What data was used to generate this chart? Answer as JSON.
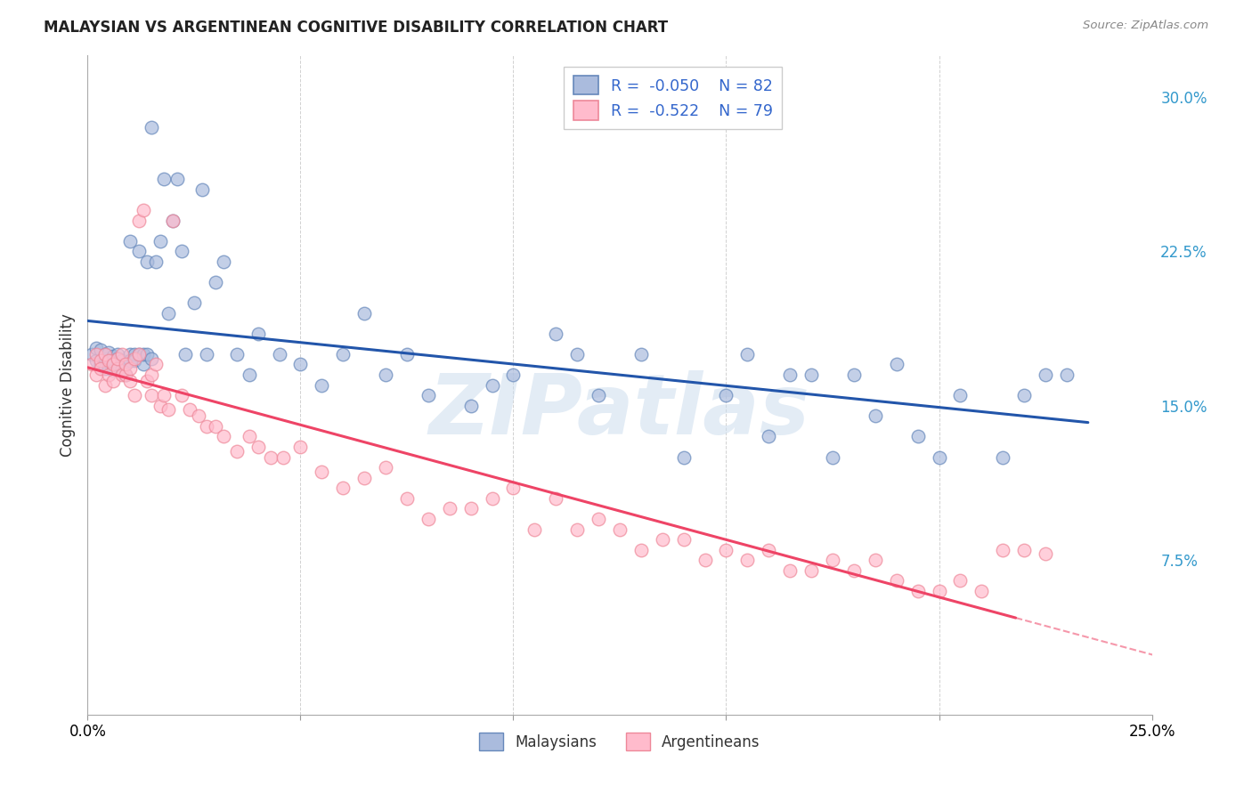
{
  "title": "MALAYSIAN VS ARGENTINEAN COGNITIVE DISABILITY CORRELATION CHART",
  "source": "Source: ZipAtlas.com",
  "ylabel": "Cognitive Disability",
  "x_min": 0.0,
  "x_max": 0.25,
  "y_min": 0.0,
  "y_max": 0.32,
  "x_ticks": [
    0.0,
    0.05,
    0.1,
    0.15,
    0.2,
    0.25
  ],
  "x_tick_labels": [
    "0.0%",
    "",
    "",
    "",
    "",
    "25.0%"
  ],
  "y_ticks_right": [
    0.075,
    0.15,
    0.225,
    0.3
  ],
  "y_tick_labels_right": [
    "7.5%",
    "15.0%",
    "22.5%",
    "30.0%"
  ],
  "color_blue_face": "#AABBDD",
  "color_pink_face": "#FFBBCC",
  "color_blue_edge": "#6688BB",
  "color_pink_edge": "#EE8899",
  "color_blue_line": "#2255AA",
  "color_pink_line": "#EE4466",
  "color_right_axis": "#3399CC",
  "legend_text_color": "#3366CC",
  "watermark": "ZIPatlas",
  "grid_color": "#CCCCCC",
  "malaysians_x": [
    0.001,
    0.002,
    0.002,
    0.003,
    0.003,
    0.004,
    0.004,
    0.004,
    0.005,
    0.005,
    0.005,
    0.006,
    0.006,
    0.006,
    0.007,
    0.007,
    0.007,
    0.008,
    0.008,
    0.009,
    0.009,
    0.01,
    0.01,
    0.01,
    0.011,
    0.011,
    0.012,
    0.012,
    0.013,
    0.013,
    0.014,
    0.014,
    0.015,
    0.015,
    0.016,
    0.017,
    0.018,
    0.019,
    0.02,
    0.021,
    0.022,
    0.023,
    0.025,
    0.027,
    0.028,
    0.03,
    0.032,
    0.035,
    0.038,
    0.04,
    0.045,
    0.05,
    0.055,
    0.06,
    0.065,
    0.07,
    0.075,
    0.08,
    0.09,
    0.095,
    0.1,
    0.11,
    0.115,
    0.12,
    0.13,
    0.14,
    0.15,
    0.155,
    0.16,
    0.165,
    0.17,
    0.175,
    0.18,
    0.185,
    0.19,
    0.195,
    0.2,
    0.205,
    0.215,
    0.22,
    0.225,
    0.23
  ],
  "malaysians_y": [
    0.175,
    0.172,
    0.178,
    0.17,
    0.177,
    0.173,
    0.168,
    0.175,
    0.171,
    0.176,
    0.169,
    0.174,
    0.172,
    0.167,
    0.175,
    0.17,
    0.173,
    0.168,
    0.172,
    0.17,
    0.165,
    0.175,
    0.172,
    0.23,
    0.175,
    0.172,
    0.175,
    0.225,
    0.17,
    0.175,
    0.22,
    0.175,
    0.173,
    0.285,
    0.22,
    0.23,
    0.26,
    0.195,
    0.24,
    0.26,
    0.225,
    0.175,
    0.2,
    0.255,
    0.175,
    0.21,
    0.22,
    0.175,
    0.165,
    0.185,
    0.175,
    0.17,
    0.16,
    0.175,
    0.195,
    0.165,
    0.175,
    0.155,
    0.15,
    0.16,
    0.165,
    0.185,
    0.175,
    0.155,
    0.175,
    0.125,
    0.155,
    0.175,
    0.135,
    0.165,
    0.165,
    0.125,
    0.165,
    0.145,
    0.17,
    0.135,
    0.125,
    0.155,
    0.125,
    0.155,
    0.165,
    0.165
  ],
  "argentineans_x": [
    0.001,
    0.002,
    0.002,
    0.003,
    0.003,
    0.004,
    0.004,
    0.005,
    0.005,
    0.006,
    0.006,
    0.007,
    0.007,
    0.008,
    0.008,
    0.009,
    0.009,
    0.01,
    0.01,
    0.011,
    0.011,
    0.012,
    0.012,
    0.013,
    0.014,
    0.015,
    0.015,
    0.016,
    0.017,
    0.018,
    0.019,
    0.02,
    0.022,
    0.024,
    0.026,
    0.028,
    0.03,
    0.032,
    0.035,
    0.038,
    0.04,
    0.043,
    0.046,
    0.05,
    0.055,
    0.06,
    0.065,
    0.07,
    0.075,
    0.08,
    0.085,
    0.09,
    0.095,
    0.1,
    0.105,
    0.11,
    0.115,
    0.12,
    0.125,
    0.13,
    0.135,
    0.14,
    0.145,
    0.15,
    0.155,
    0.16,
    0.165,
    0.17,
    0.175,
    0.18,
    0.185,
    0.19,
    0.195,
    0.2,
    0.205,
    0.21,
    0.215,
    0.22,
    0.225
  ],
  "argentineans_y": [
    0.17,
    0.175,
    0.165,
    0.172,
    0.168,
    0.175,
    0.16,
    0.172,
    0.165,
    0.17,
    0.162,
    0.168,
    0.173,
    0.165,
    0.175,
    0.165,
    0.17,
    0.162,
    0.168,
    0.173,
    0.155,
    0.175,
    0.24,
    0.245,
    0.162,
    0.165,
    0.155,
    0.17,
    0.15,
    0.155,
    0.148,
    0.24,
    0.155,
    0.148,
    0.145,
    0.14,
    0.14,
    0.135,
    0.128,
    0.135,
    0.13,
    0.125,
    0.125,
    0.13,
    0.118,
    0.11,
    0.115,
    0.12,
    0.105,
    0.095,
    0.1,
    0.1,
    0.105,
    0.11,
    0.09,
    0.105,
    0.09,
    0.095,
    0.09,
    0.08,
    0.085,
    0.085,
    0.075,
    0.08,
    0.075,
    0.08,
    0.07,
    0.07,
    0.075,
    0.07,
    0.075,
    0.065,
    0.06,
    0.06,
    0.065,
    0.06,
    0.08,
    0.08,
    0.078
  ]
}
